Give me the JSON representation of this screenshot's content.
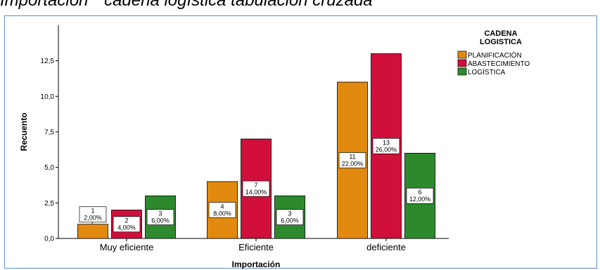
{
  "title": "Importación * cadena logística tabulación cruzada",
  "chart_data": {
    "type": "bar",
    "xlabel": "Importación",
    "ylabel": "Recuento",
    "categories": [
      "Muy eficiente",
      "Eficiente",
      "deficiente"
    ],
    "ylim": [
      0,
      15
    ],
    "yticks": [
      "0,0",
      "2,5",
      "5,0",
      "7,5",
      "10,0",
      "12,5"
    ],
    "legend_title": "CADENA LOGISTICA",
    "legend_position": "top-right",
    "series": [
      {
        "name": "PLANIFICACIÓN",
        "color": "#e28a10",
        "values": [
          1,
          4,
          11
        ],
        "labels": [
          "1\n2,00%",
          "4\n8,00%",
          "11\n22,00%"
        ]
      },
      {
        "name": "ABASTECIMIENTO",
        "color": "#d0103a",
        "values": [
          2,
          7,
          13
        ],
        "labels": [
          "2\n4,00%",
          "7\n14,00%",
          "13\n26,00%"
        ]
      },
      {
        "name": "LOGÍSTICA",
        "color": "#2c8a2c",
        "values": [
          3,
          3,
          6
        ],
        "labels": [
          "3\n6,00%",
          "3\n6,00%",
          "6\n12,00%"
        ]
      }
    ]
  }
}
